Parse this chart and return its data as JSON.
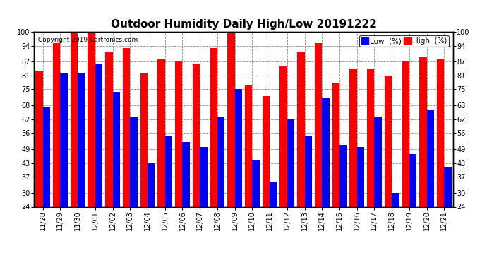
{
  "title": "Outdoor Humidity Daily High/Low 20191222",
  "copyright": "Copyright 2019 Cartronics.com",
  "legend_low": "Low  (%)",
  "legend_high": "High  (%)",
  "categories": [
    "11/28",
    "11/29",
    "11/30",
    "12/01",
    "12/02",
    "12/03",
    "12/04",
    "12/05",
    "12/06",
    "12/07",
    "12/08",
    "12/09",
    "12/10",
    "12/11",
    "12/12",
    "12/13",
    "12/14",
    "12/15",
    "12/16",
    "12/17",
    "12/18",
    "12/19",
    "12/20",
    "12/21"
  ],
  "high": [
    83,
    95,
    100,
    100,
    91,
    93,
    82,
    88,
    87,
    86,
    93,
    100,
    77,
    72,
    85,
    91,
    95,
    78,
    84,
    84,
    81,
    87,
    89,
    88
  ],
  "low": [
    67,
    82,
    82,
    86,
    74,
    63,
    43,
    55,
    52,
    50,
    63,
    75,
    44,
    35,
    62,
    55,
    71,
    51,
    50,
    63,
    30,
    47,
    66,
    41
  ],
  "ylim": [
    24,
    100
  ],
  "yticks": [
    24,
    30,
    37,
    43,
    49,
    56,
    62,
    68,
    75,
    81,
    87,
    94,
    100
  ],
  "bar_width": 0.42,
  "high_color": "#ff0000",
  "low_color": "#0000ff",
  "bg_color": "#ffffff",
  "grid_color": "#888888",
  "title_fontsize": 11,
  "tick_fontsize": 7,
  "legend_fontsize": 7.5
}
